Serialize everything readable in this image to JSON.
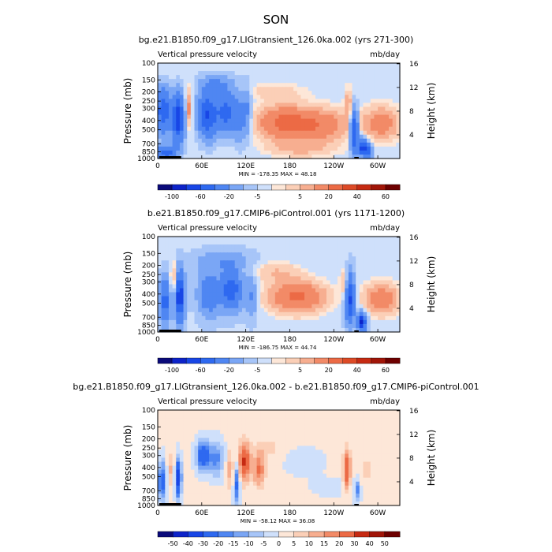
{
  "figure": {
    "title": "SON"
  },
  "chart_data": [
    {
      "type": "heatmap",
      "title": "bg.e21.B1850.f09_g17.LIGtransient_126.0ka.002 (yrs 271-300)",
      "left_label": "Vertical pressure velocity",
      "right_label": "mb/day",
      "ylabel": "Pressure (mb)",
      "ylabel_right": "Height (km)",
      "x_ticks": [
        "0",
        "60E",
        "120E",
        "180",
        "120W",
        "60W"
      ],
      "x_tick_lon": [
        0,
        60,
        120,
        180,
        240,
        300
      ],
      "xlim": [
        0,
        330
      ],
      "y_ticks": [
        "100",
        "150",
        "200",
        "250",
        "300",
        "400",
        "500",
        "700",
        "850",
        "1000"
      ],
      "y_tick_values": [
        100,
        150,
        200,
        250,
        300,
        400,
        500,
        700,
        850,
        1000
      ],
      "ylim": [
        1000,
        100
      ],
      "y_scale": "log",
      "height_ticks": [
        "4",
        "8",
        "12",
        "16"
      ],
      "height_tick_values": [
        4,
        8,
        12,
        16
      ],
      "stats": "MIN = -178.35   MAX =  48.18",
      "colorbar": {
        "labels": [
          "-100",
          "-60",
          "-20",
          "-5",
          "5",
          "20",
          "40",
          "60"
        ],
        "levels": [
          -100,
          -80,
          -60,
          -40,
          -20,
          -10,
          -5,
          -1,
          1,
          5,
          10,
          20,
          30,
          40,
          50,
          60
        ],
        "colors": [
          "#0a0a7a",
          "#0d23c9",
          "#1846e6",
          "#2e69f0",
          "#4f86f2",
          "#7aa6f5",
          "#a7c5f8",
          "#cfe0fb",
          "#fde7d8",
          "#fbcfb7",
          "#f7ae90",
          "#f28a67",
          "#ec6a45",
          "#dd4a26",
          "#c62a12",
          "#a11508",
          "#6e0000"
        ]
      },
      "fields": [
        {
          "lon": 8,
          "p": 320,
          "w": 9,
          "h": 0.5,
          "v": -55
        },
        {
          "lon": 28,
          "p": 380,
          "w": 8,
          "h": 0.55,
          "v": -70
        },
        {
          "lon": 12,
          "p": 880,
          "w": 12,
          "h": 0.18,
          "v": -45
        },
        {
          "lon": 42,
          "p": 300,
          "w": 5,
          "h": 0.45,
          "v": 18
        },
        {
          "lon": 68,
          "p": 350,
          "w": 13,
          "h": 0.5,
          "v": -60
        },
        {
          "lon": 94,
          "p": 330,
          "w": 13,
          "h": 0.45,
          "v": -45
        },
        {
          "lon": 80,
          "p": 170,
          "w": 22,
          "h": 0.25,
          "v": -18
        },
        {
          "lon": 112,
          "p": 380,
          "w": 9,
          "h": 0.55,
          "v": -22
        },
        {
          "lon": 122,
          "p": 310,
          "w": 6,
          "h": 0.6,
          "v": -15
        },
        {
          "lon": 170,
          "p": 420,
          "w": 35,
          "h": 0.4,
          "v": 24
        },
        {
          "lon": 220,
          "p": 450,
          "w": 40,
          "h": 0.4,
          "v": 20
        },
        {
          "lon": 195,
          "p": 800,
          "w": 45,
          "h": 0.2,
          "v": 8
        },
        {
          "lon": 160,
          "p": 200,
          "w": 40,
          "h": 0.2,
          "v": 6
        },
        {
          "lon": 305,
          "p": 430,
          "w": 25,
          "h": 0.4,
          "v": 18
        },
        {
          "lon": 268,
          "p": 520,
          "w": 5,
          "h": 0.5,
          "v": -60
        },
        {
          "lon": 280,
          "p": 760,
          "w": 6,
          "h": 0.2,
          "v": -70
        },
        {
          "lon": 288,
          "p": 840,
          "w": 5,
          "h": 0.15,
          "v": -40
        },
        {
          "lon": 260,
          "p": 260,
          "w": 5,
          "h": 0.35,
          "v": 12
        }
      ],
      "base": -3
    },
    {
      "type": "heatmap",
      "title": "b.e21.B1850.f09_g17.CMIP6-piControl.001 (yrs 1171-1200)",
      "left_label": "Vertical pressure velocity",
      "right_label": "mb/day",
      "ylabel": "Pressure (mb)",
      "ylabel_right": "Height (km)",
      "x_ticks": [
        "0",
        "60E",
        "120E",
        "180",
        "120W",
        "60W"
      ],
      "x_tick_lon": [
        0,
        60,
        120,
        180,
        240,
        300
      ],
      "xlim": [
        0,
        330
      ],
      "y_ticks": [
        "100",
        "150",
        "200",
        "250",
        "300",
        "400",
        "500",
        "700",
        "850",
        "1000"
      ],
      "y_tick_values": [
        100,
        150,
        200,
        250,
        300,
        400,
        500,
        700,
        850,
        1000
      ],
      "ylim": [
        1000,
        100
      ],
      "y_scale": "log",
      "height_ticks": [
        "4",
        "8",
        "12",
        "16"
      ],
      "height_tick_values": [
        4,
        8,
        12,
        16
      ],
      "stats": "MIN = -186.75   MAX =  44.74",
      "colorbar": {
        "labels": [
          "-100",
          "-60",
          "-20",
          "-5",
          "5",
          "20",
          "40",
          "60"
        ],
        "levels": [
          -100,
          -80,
          -60,
          -40,
          -20,
          -10,
          -5,
          -1,
          1,
          5,
          10,
          20,
          30,
          40,
          50,
          60
        ],
        "colors": [
          "#0a0a7a",
          "#0d23c9",
          "#1846e6",
          "#2e69f0",
          "#4f86f2",
          "#7aa6f5",
          "#a7c5f8",
          "#cfe0fb",
          "#fde7d8",
          "#fbcfb7",
          "#f7ae90",
          "#f28a67",
          "#ec6a45",
          "#dd4a26",
          "#c62a12",
          "#a11508",
          "#6e0000"
        ]
      },
      "fields": [
        {
          "lon": 10,
          "p": 480,
          "w": 7,
          "h": 0.5,
          "v": -45
        },
        {
          "lon": 30,
          "p": 420,
          "w": 6,
          "h": 0.55,
          "v": -75
        },
        {
          "lon": 22,
          "p": 300,
          "w": 5,
          "h": 0.45,
          "v": 16
        },
        {
          "lon": 70,
          "p": 400,
          "w": 14,
          "h": 0.5,
          "v": -30
        },
        {
          "lon": 100,
          "p": 360,
          "w": 14,
          "h": 0.45,
          "v": -50
        },
        {
          "lon": 90,
          "p": 180,
          "w": 35,
          "h": 0.25,
          "v": -14
        },
        {
          "lon": 128,
          "p": 420,
          "w": 8,
          "h": 0.5,
          "v": -18
        },
        {
          "lon": 190,
          "p": 430,
          "w": 40,
          "h": 0.4,
          "v": 26
        },
        {
          "lon": 160,
          "p": 230,
          "w": 35,
          "h": 0.25,
          "v": 8
        },
        {
          "lon": 305,
          "p": 450,
          "w": 25,
          "h": 0.4,
          "v": 20
        },
        {
          "lon": 262,
          "p": 450,
          "w": 6,
          "h": 0.55,
          "v": -60
        },
        {
          "lon": 278,
          "p": 780,
          "w": 6,
          "h": 0.2,
          "v": -80
        },
        {
          "lon": 255,
          "p": 300,
          "w": 6,
          "h": 0.35,
          "v": 12
        }
      ],
      "base": -4
    },
    {
      "type": "heatmap",
      "title": "bg.e21.B1850.f09_g17.LIGtransient_126.0ka.002 - b.e21.B1850.f09_g17.CMIP6-piControl.001",
      "left_label": "Vertical pressure velocity",
      "right_label": "mb/day",
      "ylabel": "Pressure (mb)",
      "ylabel_right": "Height (km)",
      "x_ticks": [
        "0",
        "60E",
        "120E",
        "180",
        "120W",
        "60W"
      ],
      "x_tick_lon": [
        0,
        60,
        120,
        180,
        240,
        300
      ],
      "xlim": [
        0,
        330
      ],
      "y_ticks": [
        "100",
        "150",
        "200",
        "250",
        "300",
        "400",
        "500",
        "700",
        "850",
        "1000"
      ],
      "y_tick_values": [
        100,
        150,
        200,
        250,
        300,
        400,
        500,
        700,
        850,
        1000
      ],
      "ylim": [
        1000,
        100
      ],
      "y_scale": "log",
      "height_ticks": [
        "4",
        "8",
        "12",
        "16"
      ],
      "height_tick_values": [
        4,
        8,
        12,
        16
      ],
      "stats": "MIN = -58.12   MAX =  36.08",
      "colorbar": {
        "labels": [
          "-50",
          "-40",
          "-30",
          "-20",
          "-15",
          "-10",
          "-5",
          "0",
          "5",
          "10",
          "15",
          "20",
          "30",
          "40",
          "50"
        ],
        "levels": [
          -50,
          -40,
          -30,
          -20,
          -15,
          -10,
          -5,
          0,
          5,
          10,
          15,
          20,
          30,
          40,
          50
        ],
        "colors": [
          "#0a0a7a",
          "#0d23c9",
          "#1846e6",
          "#2e69f0",
          "#4f86f2",
          "#7aa6f5",
          "#a7c5f8",
          "#cfe0fb",
          "#fde7d8",
          "#fbcfb7",
          "#f7ae90",
          "#f28a67",
          "#ec6a45",
          "#c62a12",
          "#a11508",
          "#6e0000"
        ]
      },
      "fields": [
        {
          "lon": 6,
          "p": 560,
          "w": 5,
          "h": 0.45,
          "v": -30
        },
        {
          "lon": 28,
          "p": 520,
          "w": 4,
          "h": 0.45,
          "v": -40
        },
        {
          "lon": 18,
          "p": 420,
          "w": 4,
          "h": 0.4,
          "v": 10
        },
        {
          "lon": 62,
          "p": 300,
          "w": 9,
          "h": 0.35,
          "v": -30
        },
        {
          "lon": 80,
          "p": 330,
          "w": 10,
          "h": 0.4,
          "v": -18
        },
        {
          "lon": 98,
          "p": 420,
          "w": 5,
          "h": 0.45,
          "v": 12
        },
        {
          "lon": 108,
          "p": 600,
          "w": 4,
          "h": 0.45,
          "v": -25
        },
        {
          "lon": 118,
          "p": 350,
          "w": 8,
          "h": 0.45,
          "v": 30
        },
        {
          "lon": 138,
          "p": 420,
          "w": 8,
          "h": 0.4,
          "v": 20
        },
        {
          "lon": 150,
          "p": 250,
          "w": 20,
          "h": 0.25,
          "v": 6
        },
        {
          "lon": 200,
          "p": 350,
          "w": 25,
          "h": 0.3,
          "v": -5
        },
        {
          "lon": 258,
          "p": 420,
          "w": 5,
          "h": 0.45,
          "v": 28
        },
        {
          "lon": 272,
          "p": 700,
          "w": 4,
          "h": 0.25,
          "v": -20
        },
        {
          "lon": 285,
          "p": 420,
          "w": 10,
          "h": 0.4,
          "v": 6
        },
        {
          "lon": 235,
          "p": 640,
          "w": 25,
          "h": 0.2,
          "v": -4
        }
      ],
      "base": 1
    }
  ]
}
